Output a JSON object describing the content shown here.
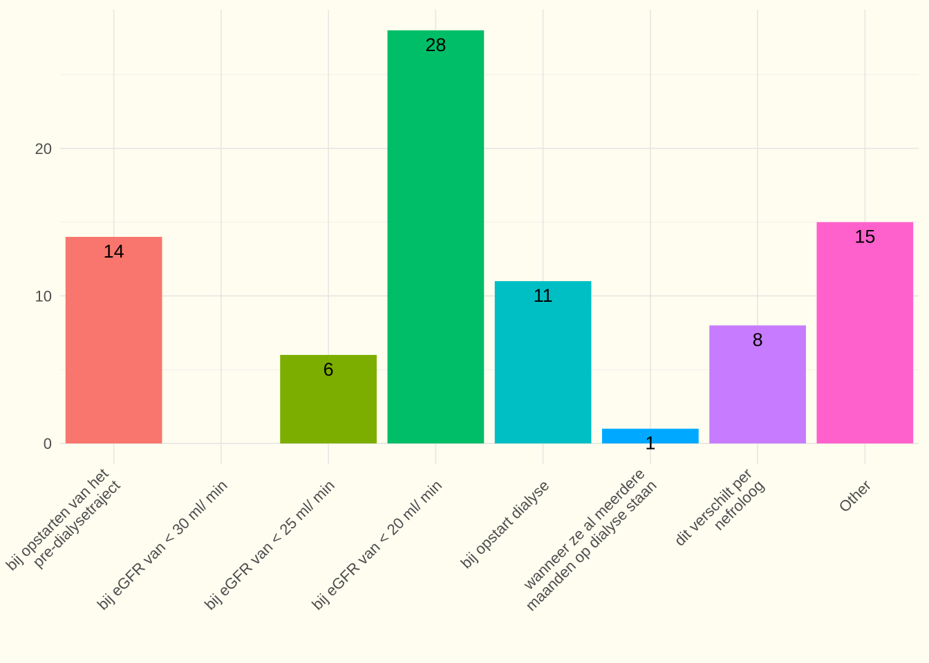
{
  "chart_data": {
    "type": "bar",
    "title": "",
    "xlabel": "",
    "ylabel": "",
    "ylim": [
      -1.4,
      29.4
    ],
    "y_ticks": [
      0,
      10,
      20
    ],
    "grid": true,
    "legend": "none",
    "categories": [
      "bij opstarten van het\npre-dialysetraject",
      "bij eGFR van < 30 ml/ min",
      "bij eGFR van < 25 ml/ min",
      "bij eGFR van < 20 ml/ min",
      "bij opstart dialyse",
      "wanneer ze al meerdere\nmaanden op dialyse staan",
      "dit verschilt per\nnefroloog",
      "Other"
    ],
    "values": [
      14,
      0,
      6,
      28,
      11,
      1,
      8,
      15
    ],
    "colors": [
      "#f8766d",
      "#d89000",
      "#7cae00",
      "#00be67",
      "#00bfc4",
      "#00a9ff",
      "#c77cff",
      "#ff61cc"
    ],
    "show_value_labels": [
      true,
      false,
      true,
      true,
      true,
      true,
      true,
      true
    ]
  }
}
